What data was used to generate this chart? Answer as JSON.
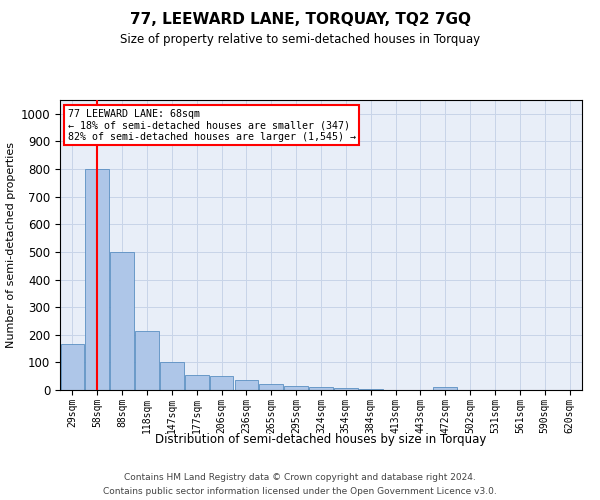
{
  "title": "77, LEEWARD LANE, TORQUAY, TQ2 7GQ",
  "subtitle": "Size of property relative to semi-detached houses in Torquay",
  "xlabel": "Distribution of semi-detached houses by size in Torquay",
  "ylabel": "Number of semi-detached properties",
  "categories": [
    "29sqm",
    "58sqm",
    "88sqm",
    "118sqm",
    "147sqm",
    "177sqm",
    "206sqm",
    "236sqm",
    "265sqm",
    "295sqm",
    "324sqm",
    "354sqm",
    "384sqm",
    "413sqm",
    "443sqm",
    "472sqm",
    "502sqm",
    "531sqm",
    "561sqm",
    "590sqm",
    "620sqm"
  ],
  "values": [
    165,
    800,
    500,
    215,
    100,
    53,
    50,
    35,
    20,
    15,
    10,
    8,
    5,
    0,
    0,
    10,
    0,
    0,
    0,
    0,
    0
  ],
  "bar_color": "#aec6e8",
  "bar_edge_color": "#5a8fc2",
  "property_line_x": 1,
  "property_line_color": "#ff0000",
  "annotation_text": "77 LEEWARD LANE: 68sqm\n← 18% of semi-detached houses are smaller (347)\n82% of semi-detached houses are larger (1,545) →",
  "annotation_box_color": "#ff0000",
  "annotation_text_color": "#000000",
  "ylim": [
    0,
    1050
  ],
  "yticks": [
    0,
    100,
    200,
    300,
    400,
    500,
    600,
    700,
    800,
    900,
    1000
  ],
  "footer_line1": "Contains HM Land Registry data © Crown copyright and database right 2024.",
  "footer_line2": "Contains public sector information licensed under the Open Government Licence v3.0.",
  "background_color": "#ffffff",
  "axes_background": "#e8eef8",
  "grid_color": "#c8d4e8"
}
